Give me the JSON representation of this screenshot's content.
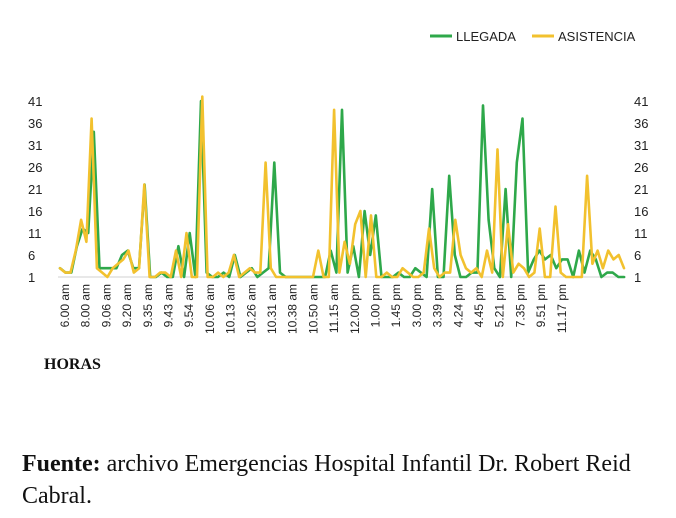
{
  "chart_data": {
    "type": "line",
    "title": "",
    "xlabel": "HORAS",
    "ylabel": "",
    "ylim": [
      1,
      41
    ],
    "yticks": [
      1,
      6,
      11,
      16,
      21,
      26,
      31,
      36,
      41
    ],
    "right_yticks": [
      "1",
      "6",
      "11",
      "16",
      "21",
      "26",
      "31",
      "36",
      "41"
    ],
    "x_tick_labels": [
      "6.00 am",
      "8.00 am",
      "9.06 am",
      "9.20 am",
      "9.35 am",
      "9.43 am",
      "9.54 am",
      "10.06 am",
      "10.13 am",
      "10.26 am",
      "10.31 am",
      "10.38 am",
      "10.50 am",
      "11.15 am",
      "12.00 pm",
      "1.00 pm",
      "1.45 pm",
      "3.00 pm",
      "3.39 pm",
      "4.24 pm",
      "4.45 pm",
      "5.21 pm",
      "7.35 pm",
      "9.51 pm",
      "11.17 pm"
    ],
    "legend_position": "top-right",
    "grid": false,
    "series": [
      {
        "name": "LLEGADA",
        "color": "#2ea84a",
        "values": [
          3,
          2,
          2,
          8,
          12,
          11,
          34,
          3,
          3,
          3,
          3,
          6,
          7,
          3,
          3,
          22,
          1,
          1,
          2,
          1,
          1,
          8,
          1,
          11,
          1,
          41,
          2,
          1,
          1,
          2,
          1,
          6,
          1,
          2,
          3,
          1,
          2,
          3,
          27,
          2,
          1,
          1,
          1,
          1,
          1,
          1,
          1,
          1,
          7,
          2,
          39,
          2,
          8,
          1,
          16,
          6,
          15,
          1,
          1,
          1,
          2,
          1,
          1,
          3,
          2,
          1,
          21,
          1,
          1,
          24,
          6,
          1,
          1,
          2,
          2,
          40,
          14,
          3,
          1,
          21,
          1,
          27,
          37,
          2,
          5,
          7,
          5,
          6,
          3,
          5,
          5,
          1,
          7,
          2,
          7,
          5,
          1,
          2,
          2,
          1,
          1
        ]
      },
      {
        "name": "ASISTENCIA",
        "color": "#f2c12e",
        "values": [
          3,
          2,
          2,
          7,
          14,
          9,
          37,
          3,
          2,
          1,
          3,
          4,
          5,
          7,
          2,
          3,
          22,
          1,
          1,
          2,
          2,
          1,
          7,
          1,
          11,
          1,
          1,
          42,
          1,
          1,
          2,
          1,
          2,
          6,
          1,
          2,
          3,
          2,
          2,
          27,
          3,
          1,
          1,
          1,
          1,
          1,
          1,
          1,
          1,
          7,
          1,
          1,
          39,
          2,
          9,
          4,
          13,
          16,
          1,
          15,
          1,
          1,
          2,
          1,
          1,
          3,
          2,
          1,
          1,
          2,
          12,
          3,
          1,
          2,
          2,
          14,
          6,
          3,
          2,
          3,
          1,
          7,
          2,
          30,
          1,
          13,
          2,
          4,
          3,
          1,
          2,
          12,
          1,
          1,
          17,
          2,
          1,
          1,
          1,
          1,
          24,
          4,
          7,
          3,
          7,
          5,
          6,
          3
        ]
      }
    ]
  },
  "source_note": {
    "label": "Fuente:",
    "text": " archivo Emergencias Hospital Infantil Dr. Robert Reid Cabral."
  }
}
